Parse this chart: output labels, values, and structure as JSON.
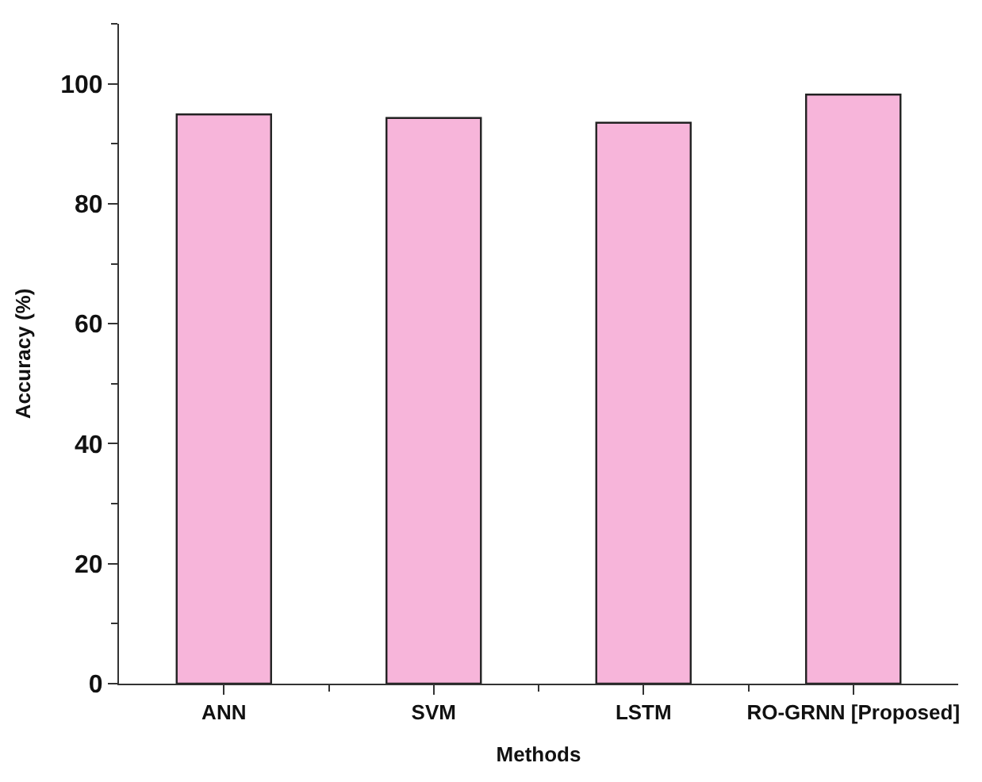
{
  "chart_data": {
    "type": "bar",
    "xlabel": "Methods",
    "ylabel": "Accuracy (%)",
    "categories": [
      "ANN",
      "SVM",
      "LSTM",
      "RO-GRNN [Proposed]"
    ],
    "values": [
      94.9,
      94.3,
      93.5,
      98.2
    ],
    "color": "#f7b5da",
    "ylim": [
      0,
      110
    ],
    "yticks": [
      0,
      20,
      40,
      60,
      80,
      100
    ]
  }
}
